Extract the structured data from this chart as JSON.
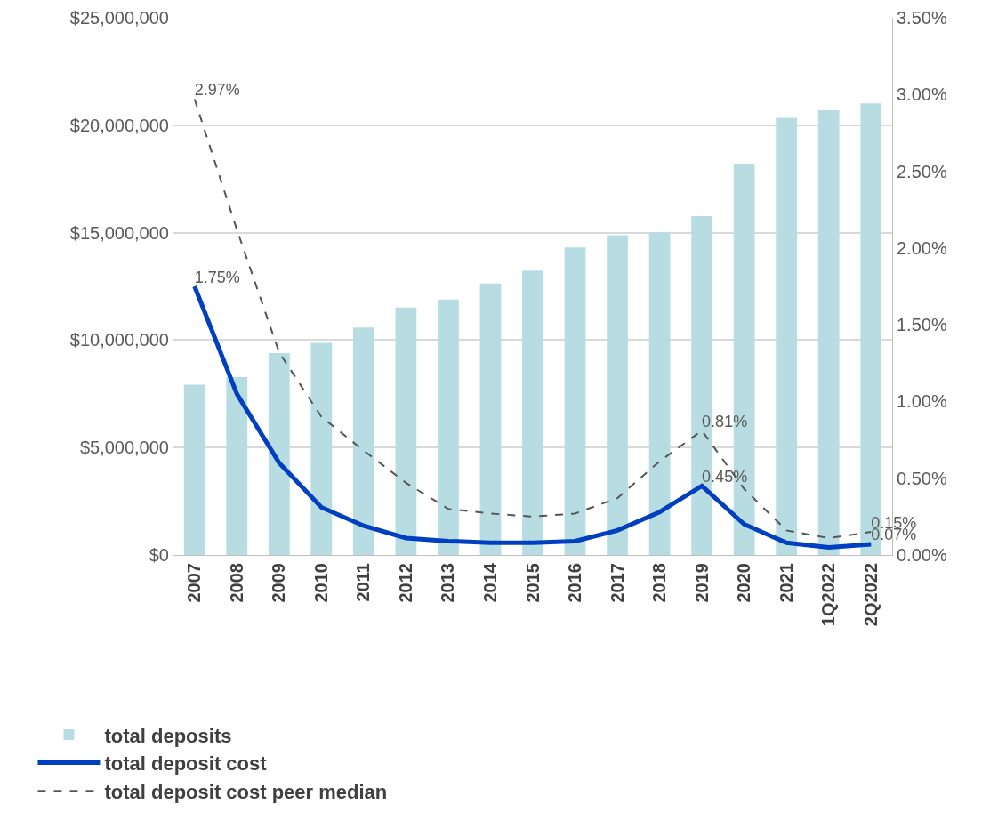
{
  "chart_data": {
    "type": "bar",
    "categories": [
      "2007",
      "2008",
      "2009",
      "2010",
      "2011",
      "2012",
      "2013",
      "2014",
      "2015",
      "2016",
      "2017",
      "2018",
      "2019",
      "2020",
      "2021",
      "1Q2022",
      "2Q2022"
    ],
    "series": [
      {
        "name": "total deposits",
        "color": "#b7dde2",
        "values": [
          7930000,
          8280000,
          9400000,
          9870000,
          10590000,
          11520000,
          11890000,
          12630000,
          13230000,
          14310000,
          14880000,
          15010000,
          15770000,
          18210000,
          20340000,
          20700000,
          21020000
        ]
      },
      {
        "name": "total deposit cost",
        "type": "line",
        "axis": "y2",
        "color": "#0040c0",
        "line_style": "solid",
        "values": [
          1.75,
          1.05,
          0.6,
          0.31,
          0.19,
          0.11,
          0.09,
          0.08,
          0.08,
          0.09,
          0.16,
          0.28,
          0.45,
          0.2,
          0.08,
          0.05,
          0.07
        ],
        "value_labels": [
          "1.75%",
          null,
          null,
          null,
          null,
          null,
          null,
          null,
          null,
          null,
          null,
          null,
          "0.45%",
          null,
          null,
          null,
          "0.07%"
        ]
      },
      {
        "name": "total deposit cost peer median",
        "type": "line",
        "axis": "y2",
        "color": "#555555",
        "line_style": "dashed",
        "values": [
          2.97,
          2.12,
          1.32,
          0.9,
          0.68,
          0.47,
          0.3,
          0.27,
          0.25,
          0.27,
          0.37,
          0.61,
          0.81,
          0.43,
          0.16,
          0.11,
          0.15
        ],
        "value_labels": [
          "2.97%",
          null,
          null,
          null,
          null,
          null,
          null,
          null,
          null,
          null,
          null,
          null,
          "0.81%",
          null,
          null,
          null,
          "0.15%"
        ]
      }
    ],
    "ylim": [
      0,
      25000000
    ],
    "yticks": [
      {
        "value": 0,
        "label": "$0"
      },
      {
        "value": 5000000,
        "label": "$5,000,000"
      },
      {
        "value": 10000000,
        "label": "$10,000,000"
      },
      {
        "value": 15000000,
        "label": "$15,000,000"
      },
      {
        "value": 20000000,
        "label": "$20,000,000"
      },
      {
        "value": 25000000,
        "label": "$25,000,000"
      }
    ],
    "y2lim": [
      0,
      3.5
    ],
    "y2ticks": [
      {
        "value": 0,
        "label": "0.00%"
      },
      {
        "value": 0.5,
        "label": "0.50%"
      },
      {
        "value": 1,
        "label": "1.00%"
      },
      {
        "value": 1.5,
        "label": "1.50%"
      },
      {
        "value": 2,
        "label": "2.00%"
      },
      {
        "value": 2.5,
        "label": "2.50%"
      },
      {
        "value": 3,
        "label": "3.00%"
      },
      {
        "value": 3.5,
        "label": "3.50%"
      }
    ],
    "grid": "y",
    "legend": "bottom",
    "marker": "none"
  }
}
